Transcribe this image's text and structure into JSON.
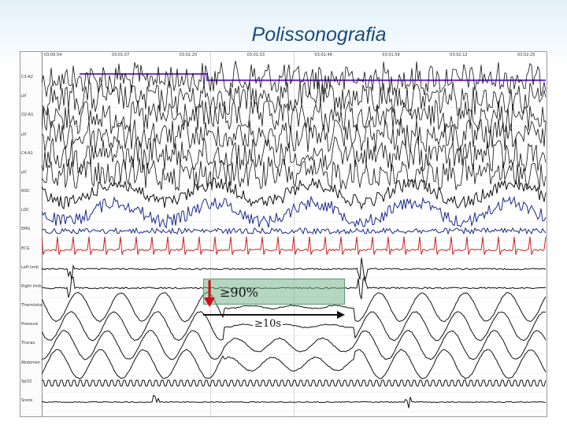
{
  "slide": {
    "title": "Polissonografia"
  },
  "recording": {
    "timestamps": [
      "03:00:54",
      "03:01:07",
      "03:01:20",
      "03:01:33",
      "03:01:46",
      "03:01:59",
      "03:02:12",
      "03:02:25"
    ],
    "channels": [
      {
        "label": "C3-A2",
        "kind": "eeg",
        "color": "#111111"
      },
      {
        "label": "μV",
        "kind": "eeg",
        "color": "#111111"
      },
      {
        "label": "O2-A1",
        "kind": "eeg",
        "color": "#111111"
      },
      {
        "label": "μV",
        "kind": "eeg",
        "color": "#111111"
      },
      {
        "label": "C4-A1",
        "kind": "eeg",
        "color": "#111111"
      },
      {
        "label": "μV",
        "kind": "eeg",
        "color": "#111111"
      },
      {
        "label": "ROC",
        "kind": "eog",
        "color": "#111111"
      },
      {
        "label": "LOC",
        "kind": "eog",
        "color": "#1a2a8a"
      },
      {
        "label": "EMG",
        "kind": "emg",
        "color": "#1a2a8a"
      },
      {
        "label": "ECG",
        "kind": "ecg",
        "color": "#cc2222"
      },
      {
        "label": "Left limb",
        "kind": "limb",
        "color": "#111111"
      },
      {
        "label": "Right limb",
        "kind": "limb",
        "color": "#111111"
      },
      {
        "label": "Thermistor",
        "kind": "airflow",
        "color": "#111111"
      },
      {
        "label": "Pressure",
        "kind": "airflow",
        "color": "#111111"
      },
      {
        "label": "Thorax",
        "kind": "effort",
        "color": "#111111"
      },
      {
        "label": "Abdomen",
        "kind": "effort",
        "color": "#111111"
      },
      {
        "label": "SpO2",
        "kind": "spo2",
        "color": "#111111"
      },
      {
        "label": "Snore",
        "kind": "snore",
        "color": "#111111"
      }
    ],
    "stage_marker_color": "#7a3cc8",
    "annotation": {
      "reduction_label": "≥90%",
      "duration_label": "≥10s",
      "box_color": "#78b48c",
      "arrow_color": "#cc1111"
    }
  }
}
